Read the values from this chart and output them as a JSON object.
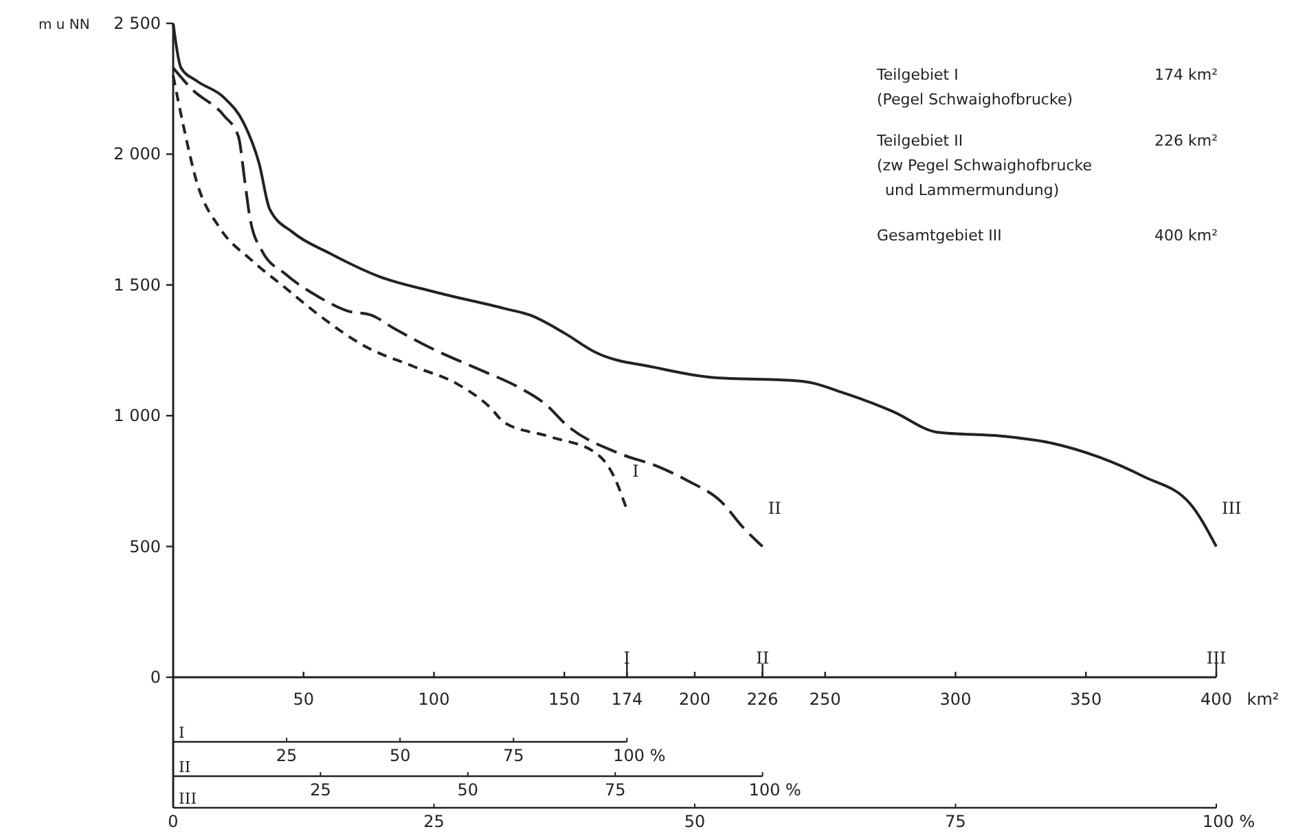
{
  "chart_data": {
    "type": "line",
    "ylabel": "m u NN",
    "xlabel": "km²",
    "xlim": [
      0,
      400
    ],
    "ylim": [
      0,
      2500
    ],
    "xticks": [
      50,
      100,
      150,
      174,
      200,
      226,
      250,
      300,
      350,
      400
    ],
    "yticks": [
      0,
      500,
      {
        "value": 1000,
        "label": "1 000"
      },
      {
        "value": 1500,
        "label": "1 500"
      },
      {
        "value": 2000,
        "label": "2 000"
      },
      {
        "value": 2500,
        "label": "2 500"
      }
    ],
    "x2label": "I",
    "x2lim": [
      0,
      100
    ],
    "x2ticks": [
      25,
      50,
      75,
      {
        "value": 100,
        "label": "100 %"
      }
    ],
    "grid": false,
    "marker": "none",
    "series": [
      {
        "name": "I",
        "color": "#222222",
        "line_style": "dashed",
        "x": [
          0,
          4,
          9,
          18,
          30,
          43,
          56,
          74,
          92,
          109,
          121.5,
          127,
          144,
          162,
          169,
          174
        ],
        "values": [
          2300,
          2105,
          1895,
          1716,
          1595,
          1489,
          1384,
          1263,
          1189,
          1121,
          1032,
          974,
          921,
          858,
          768,
          640
        ]
      },
      {
        "name": "II",
        "color": "#222222",
        "line_style": "dashed",
        "x": [
          0,
          7,
          19.5,
          25,
          27.5,
          29.5,
          34,
          43,
          56,
          67,
          76,
          85,
          100,
          118,
          132,
          143,
          151,
          170.5,
          186,
          197,
          211,
          218,
          226
        ],
        "values": [
          2330,
          2250,
          2147,
          2068,
          1895,
          1753,
          1631,
          1542,
          1453,
          1400,
          1384,
          1332,
          1253,
          1174,
          1111,
          1042,
          963,
          858,
          805,
          753,
          663,
          579,
          500
        ]
      },
      {
        "name": "III",
        "color": "#222222",
        "line_style": "solid",
        "x": [
          0,
          3,
          9,
          19.5,
          27,
          33,
          37,
          46,
          60,
          79,
          100,
          127,
          137,
          150,
          162,
          185,
          206,
          241,
          258,
          276,
          293,
          319,
          337,
          355,
          372,
          390,
          400
        ],
        "values": [
          2500,
          2330,
          2280,
          2216,
          2120,
          1963,
          1790,
          1700,
          1621,
          1532,
          1474,
          1410,
          1384,
          1316,
          1242,
          1184,
          1147,
          1132,
          1084,
          1016,
          937,
          921,
          895,
          842,
          768,
          663,
          500
        ]
      }
    ],
    "annotations": [
      "Teilgebiet I",
      "174 km²",
      "(Pegel Schwaighofbrucke)",
      "Teilgebiet II",
      "226 km²",
      "(zw Pegel Schwaighofbrucke",
      "und Lammermundung)",
      "Gesamtgebiet III",
      "400 km²",
      "I",
      "II",
      "III",
      "II",
      "25",
      "50",
      "75",
      "100 %",
      "III",
      "0",
      "25",
      "50",
      "75",
      "100 %"
    ]
  }
}
